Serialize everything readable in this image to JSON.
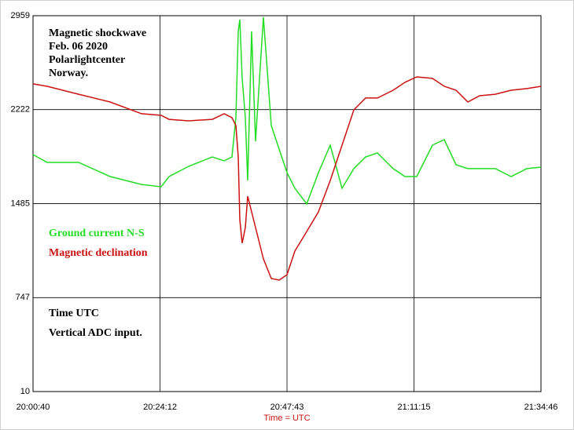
{
  "chart_data": {
    "type": "line",
    "annotations": [
      "Magnetic shockwave",
      "Feb. 06  2020",
      "Polarlightcenter",
      "Norway.",
      "Time UTC",
      "Vertical ADC input."
    ],
    "x_label": "Time = UTC",
    "x": [
      "20:00:40",
      "20:03:17",
      "20:09:07",
      "20:14:57",
      "20:20:46",
      "20:24:25",
      "20:25:52",
      "20:29:30",
      "20:33:53",
      "20:36:04",
      "20:37:31",
      "20:38:15",
      "20:38:41",
      "20:38:59",
      "20:39:25",
      "20:40:00",
      "20:40:26",
      "20:41:10",
      "20:41:53",
      "20:43:21",
      "20:44:48",
      "20:46:16",
      "20:47:43",
      "20:49:10",
      "20:51:22",
      "20:53:33",
      "20:55:44",
      "20:57:55",
      "21:00:06",
      "21:02:17",
      "21:04:28",
      "21:07:23",
      "21:09:34",
      "21:11:45",
      "21:14:40",
      "21:16:51",
      "21:19:02",
      "21:21:13",
      "21:23:24",
      "21:26:19",
      "21:29:14",
      "21:32:09",
      "21:34:46"
    ],
    "series": [
      {
        "name": "Ground current N-S",
        "color": "#22dd22",
        "values": [
          1869,
          1808,
          1808,
          1697,
          1635,
          1617,
          1697,
          1777,
          1851,
          1820,
          1851,
          2159,
          2836,
          2928,
          2467,
          2159,
          1666,
          2836,
          1974,
          2947,
          2097,
          1912,
          1728,
          1605,
          1482,
          1728,
          1943,
          1605,
          1759,
          1851,
          1882,
          1759,
          1697,
          1697,
          1943,
          1986,
          1789,
          1759,
          1759,
          1759,
          1697,
          1759,
          1771
        ]
      },
      {
        "name": "Magnetic declination",
        "color": "#cc1111",
        "values": [
          2424,
          2405,
          2343,
          2282,
          2190,
          2177,
          2146,
          2134,
          2146,
          2190,
          2159,
          2097,
          1851,
          1358,
          1174,
          1297,
          1543,
          1420,
          1297,
          1051,
          897,
          884,
          927,
          1112,
          1266,
          1420,
          1666,
          1943,
          2220,
          2313,
          2313,
          2374,
          2436,
          2479,
          2467,
          2405,
          2374,
          2282,
          2331,
          2343,
          2374,
          2387,
          2405
        ]
      }
    ],
    "xlim": [
      "20:00:40",
      "21:34:46"
    ],
    "xticks": [
      "20:00:40",
      "20:24:12",
      "20:47:43",
      "21:11:15",
      "21:34:46"
    ],
    "ylim": [
      10,
      2959
    ],
    "yticks": [
      10,
      747,
      1485,
      2222,
      2959
    ],
    "grid": true
  }
}
